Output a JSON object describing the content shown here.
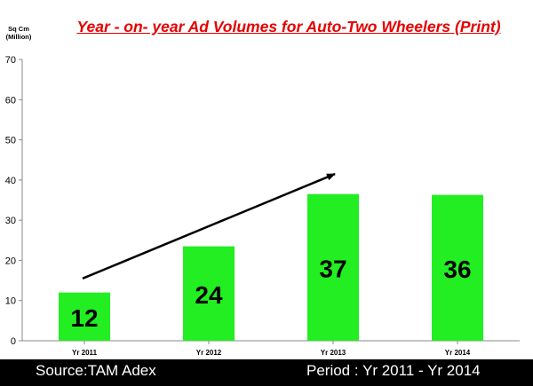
{
  "chart_data": {
    "type": "bar",
    "title": "Year - on- year Ad Volumes for Auto-Two Wheelers  (Print)",
    "ylabel": "Sq Cm (Million)",
    "xlabel": "",
    "categories": [
      "Yr 2011",
      "Yr 2012",
      "Yr 2013",
      "Yr 2014"
    ],
    "values": [
      12,
      23.5,
      36.5,
      36.3
    ],
    "data_labels": [
      "12",
      "24",
      "37",
      "36"
    ],
    "ylim": [
      0,
      70
    ],
    "yticks": [
      0,
      10,
      20,
      30,
      40,
      50,
      60,
      70
    ],
    "grid": false,
    "legend": "none",
    "annotations": [
      "upward trend arrow from Yr 2011 to Yr 2013"
    ]
  },
  "unit_line1": "Sq Cm",
  "unit_line2": "(Million)",
  "colors": {
    "bar": "#22ee22",
    "title": "#e60000",
    "footer_bg": "#000000",
    "footer_text": "#ffffff"
  },
  "footer": {
    "source": "Source:TAM Adex",
    "period": "Period : Yr 2011 - Yr 2014"
  }
}
